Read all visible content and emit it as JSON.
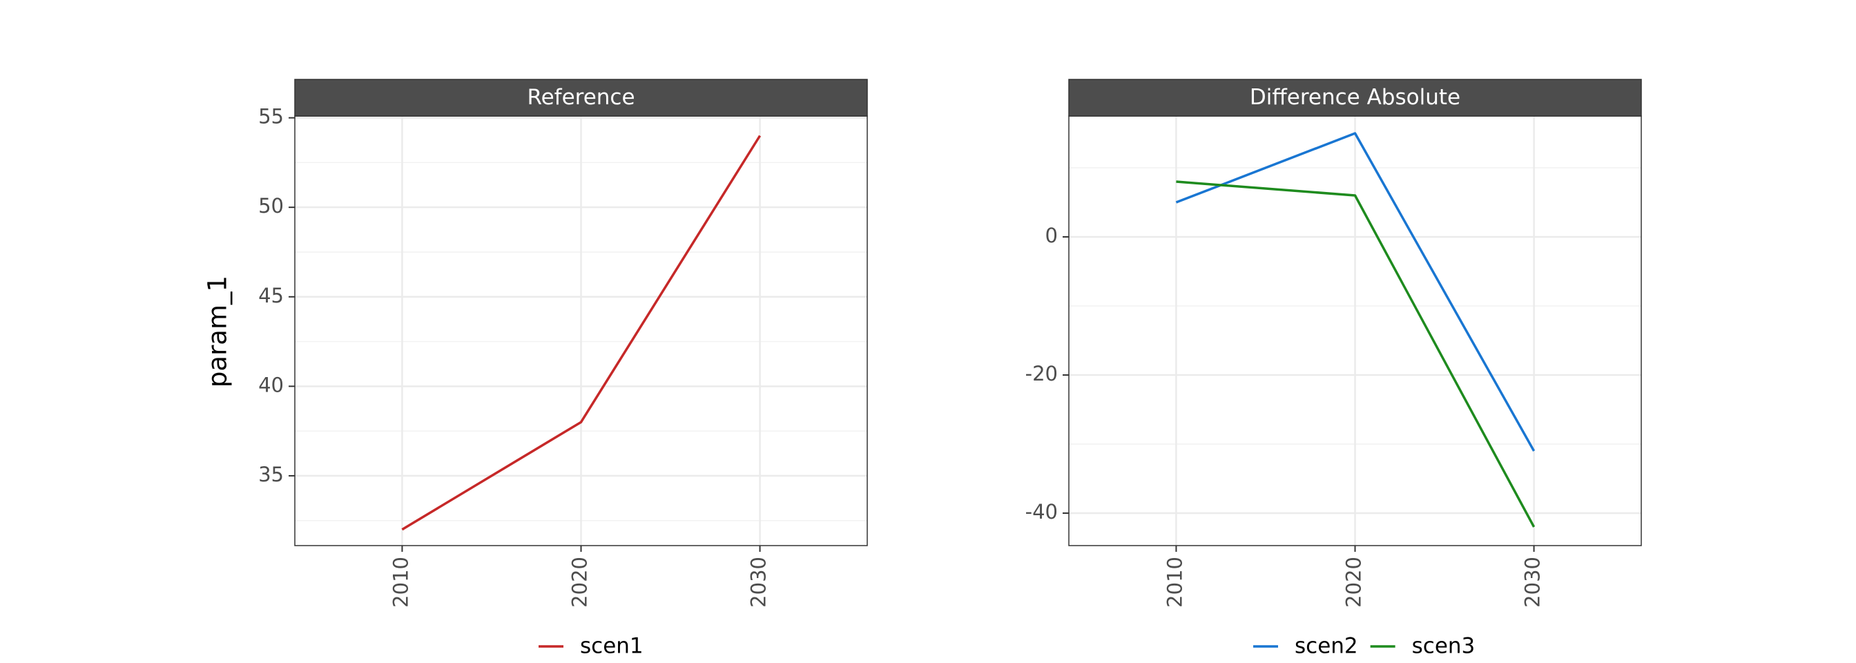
{
  "ylabel": "param_1",
  "chart_data": [
    {
      "type": "line",
      "title": "Reference",
      "xlabel": "",
      "ylabel": "param_1",
      "x": [
        2010,
        2020,
        2030
      ],
      "xlim": [
        2004,
        2036
      ],
      "ylim": [
        31.1,
        55.1
      ],
      "yticks": [
        35,
        40,
        45,
        50,
        55
      ],
      "grid": true,
      "legend": "bottom",
      "series": [
        {
          "name": "scen1",
          "color": "#c62828",
          "values": [
            32,
            38,
            54
          ]
        }
      ]
    },
    {
      "type": "line",
      "title": "Difference Absolute",
      "xlabel": "",
      "ylabel": "",
      "x": [
        2010,
        2020,
        2030
      ],
      "xlim": [
        2004,
        2036
      ],
      "ylim": [
        -44.7,
        17.5
      ],
      "yticks": [
        -40,
        -20,
        0
      ],
      "grid": true,
      "legend": "bottom",
      "series": [
        {
          "name": "scen2",
          "color": "#1976d2",
          "values": [
            5,
            15,
            -31
          ]
        },
        {
          "name": "scen3",
          "color": "#1e8b1e",
          "values": [
            8,
            6,
            -42
          ]
        }
      ]
    }
  ]
}
